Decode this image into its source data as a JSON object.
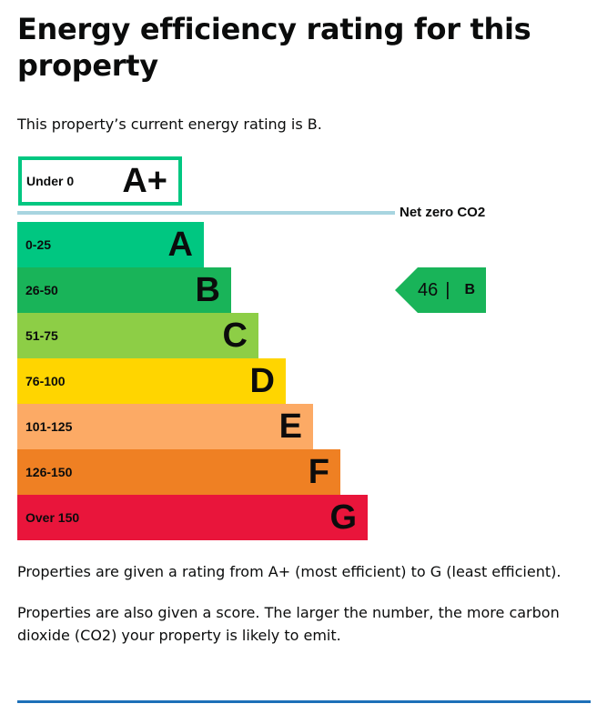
{
  "title": "Energy efficiency rating for this property",
  "intro": "This property’s current energy rating is B.",
  "aplus": {
    "range": "Under 0",
    "letter": "A+",
    "color": "#00c781"
  },
  "net_zero_label": "Net zero CO2",
  "bands": [
    {
      "range": "0-25",
      "letter": "A",
      "color": "#00c781"
    },
    {
      "range": "26-50",
      "letter": "B",
      "color": "#19b459"
    },
    {
      "range": "51-75",
      "letter": "C",
      "color": "#8dce46"
    },
    {
      "range": "76-100",
      "letter": "D",
      "color": "#ffd500"
    },
    {
      "range": "101-125",
      "letter": "E",
      "color": "#fcaa65"
    },
    {
      "range": "126-150",
      "letter": "F",
      "color": "#ef8023"
    },
    {
      "range": "Over 150",
      "letter": "G",
      "color": "#e9153b"
    }
  ],
  "current": {
    "score": "46",
    "separator": "|",
    "letter": "B",
    "color": "#19b459"
  },
  "para1": "Properties are given a rating from A+ (most efficient) to G (least efficient).",
  "para2": "Properties are also given a score. The larger the number, the more carbon dioxide (CO2) your property is likely to emit."
}
